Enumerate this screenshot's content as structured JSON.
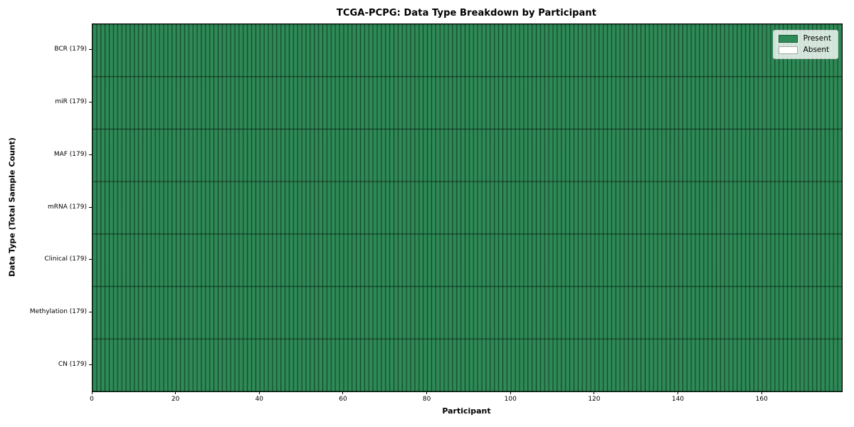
{
  "chart_data": {
    "type": "heatmap",
    "title": "TCGA-PCPG: Data Type Breakdown by Participant",
    "xlabel": "Participant",
    "ylabel": "Data Type (Total Sample Count)",
    "xlim": [
      0,
      179
    ],
    "n_participants": 179,
    "x_ticks": [
      0,
      20,
      40,
      60,
      80,
      100,
      120,
      140,
      160
    ],
    "x_tick_labels": [
      "0",
      "20",
      "40",
      "60",
      "80",
      "100",
      "120",
      "140",
      "160"
    ],
    "rows": [
      {
        "label": "BCR (179)",
        "data_type": "BCR",
        "total_samples": 179,
        "present_participants": 179,
        "absent_participants": 0
      },
      {
        "label": "miR (179)",
        "data_type": "miR",
        "total_samples": 179,
        "present_participants": 179,
        "absent_participants": 0
      },
      {
        "label": "MAF (179)",
        "data_type": "MAF",
        "total_samples": 179,
        "present_participants": 179,
        "absent_participants": 0
      },
      {
        "label": "mRNA (179)",
        "data_type": "mRNA",
        "total_samples": 179,
        "present_participants": 179,
        "absent_participants": 0
      },
      {
        "label": "Clinical (179)",
        "data_type": "Clinical",
        "total_samples": 179,
        "present_participants": 179,
        "absent_participants": 0
      },
      {
        "label": "Methylation (179)",
        "data_type": "Methylation",
        "total_samples": 179,
        "present_participants": 179,
        "absent_participants": 0
      },
      {
        "label": "CN (179)",
        "data_type": "CN",
        "total_samples": 179,
        "present_participants": 179,
        "absent_participants": 0
      }
    ],
    "legend": {
      "position": "upper right",
      "items": [
        {
          "label": "Present",
          "color": "#2e8b57"
        },
        {
          "label": "Absent",
          "color": "#ffffff"
        }
      ]
    },
    "colors": {
      "present": "#2e8b57",
      "absent": "#ffffff",
      "cell_edge": "rgba(0,0,0,0.82)",
      "axes_edge": "#000000"
    },
    "grid": "cell-borders"
  }
}
